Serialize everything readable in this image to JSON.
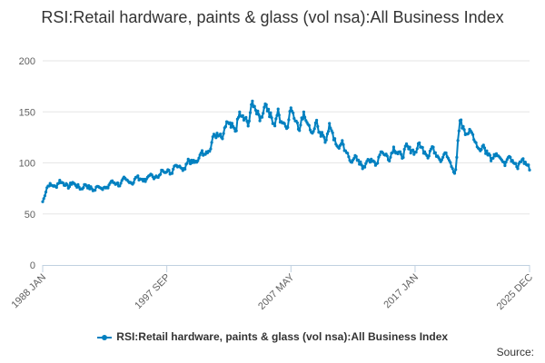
{
  "colors": {
    "series": "#0080c0",
    "grid": "#e6e6e6",
    "axis": "#c0d0e0",
    "text": "#606060"
  },
  "chart_data": {
    "type": "line",
    "title": "RSI:Retail hardware, paints & glass (vol nsa):All Business Index",
    "xlabel": "",
    "ylabel": "",
    "x_tick_labels": [
      "1988 JAN",
      "1997 SEP",
      "2007 MAY",
      "2017 JAN",
      "2025 DEC"
    ],
    "y_ticks": [
      0,
      50,
      100,
      150,
      200
    ],
    "ylim": [
      0,
      200
    ],
    "grid": true,
    "legend_position": "bottom-center",
    "series": [
      {
        "name": "RSI:Retail hardware, paints & glass (vol nsa):All Business Index",
        "marker": "circle",
        "anchors": [
          [
            "1988 JAN",
            64
          ],
          [
            "1988 JUL",
            78
          ],
          [
            "1989 JUL",
            80
          ],
          [
            "1990 JUL",
            78
          ],
          [
            "1991 JUL",
            76
          ],
          [
            "1992 JUL",
            75
          ],
          [
            "1993 JUL",
            80
          ],
          [
            "1994 JUL",
            82
          ],
          [
            "1995 JUL",
            84
          ],
          [
            "1996 JUL",
            86
          ],
          [
            "1997 SEP",
            92
          ],
          [
            "1998 JUL",
            96
          ],
          [
            "1999 JUL",
            100
          ],
          [
            "2000 JUL",
            108
          ],
          [
            "2001 JUL",
            125
          ],
          [
            "2002 JUL",
            135
          ],
          [
            "2003 JUL",
            142
          ],
          [
            "2004 JUL",
            152
          ],
          [
            "2005 JUL",
            150
          ],
          [
            "2006 JUL",
            140
          ],
          [
            "2007 MAY",
            145
          ],
          [
            "2008 JUL",
            140
          ],
          [
            "2009 JUL",
            130
          ],
          [
            "2010 JUL",
            128
          ],
          [
            "2011 JUL",
            112
          ],
          [
            "2012 JUL",
            100
          ],
          [
            "2013 JUL",
            100
          ],
          [
            "2014 JUL",
            108
          ],
          [
            "2015 JUL",
            110
          ],
          [
            "2016 JUL",
            112
          ],
          [
            "2017 JAN",
            115
          ],
          [
            "2018 JUL",
            110
          ],
          [
            "2019 JUL",
            105
          ],
          [
            "2020 MAR",
            92
          ],
          [
            "2020 JUL",
            140
          ],
          [
            "2021 JUL",
            125
          ],
          [
            "2022 JUL",
            110
          ],
          [
            "2023 JUL",
            104
          ],
          [
            "2024 JUL",
            102
          ],
          [
            "2025 DEC",
            98
          ]
        ],
        "seasonal_amplitude": [
          [
            "1988",
            0.09
          ],
          [
            "1995",
            0.1
          ],
          [
            "2001",
            0.12
          ],
          [
            "2004",
            0.16
          ],
          [
            "2010",
            0.17
          ],
          [
            "2014",
            0.13
          ],
          [
            "2020",
            0.12
          ],
          [
            "2025",
            0.12
          ]
        ]
      }
    ]
  },
  "legend": {
    "label": "RSI:Retail hardware, paints & glass (vol nsa):All Business Index"
  },
  "credits": "Source:"
}
